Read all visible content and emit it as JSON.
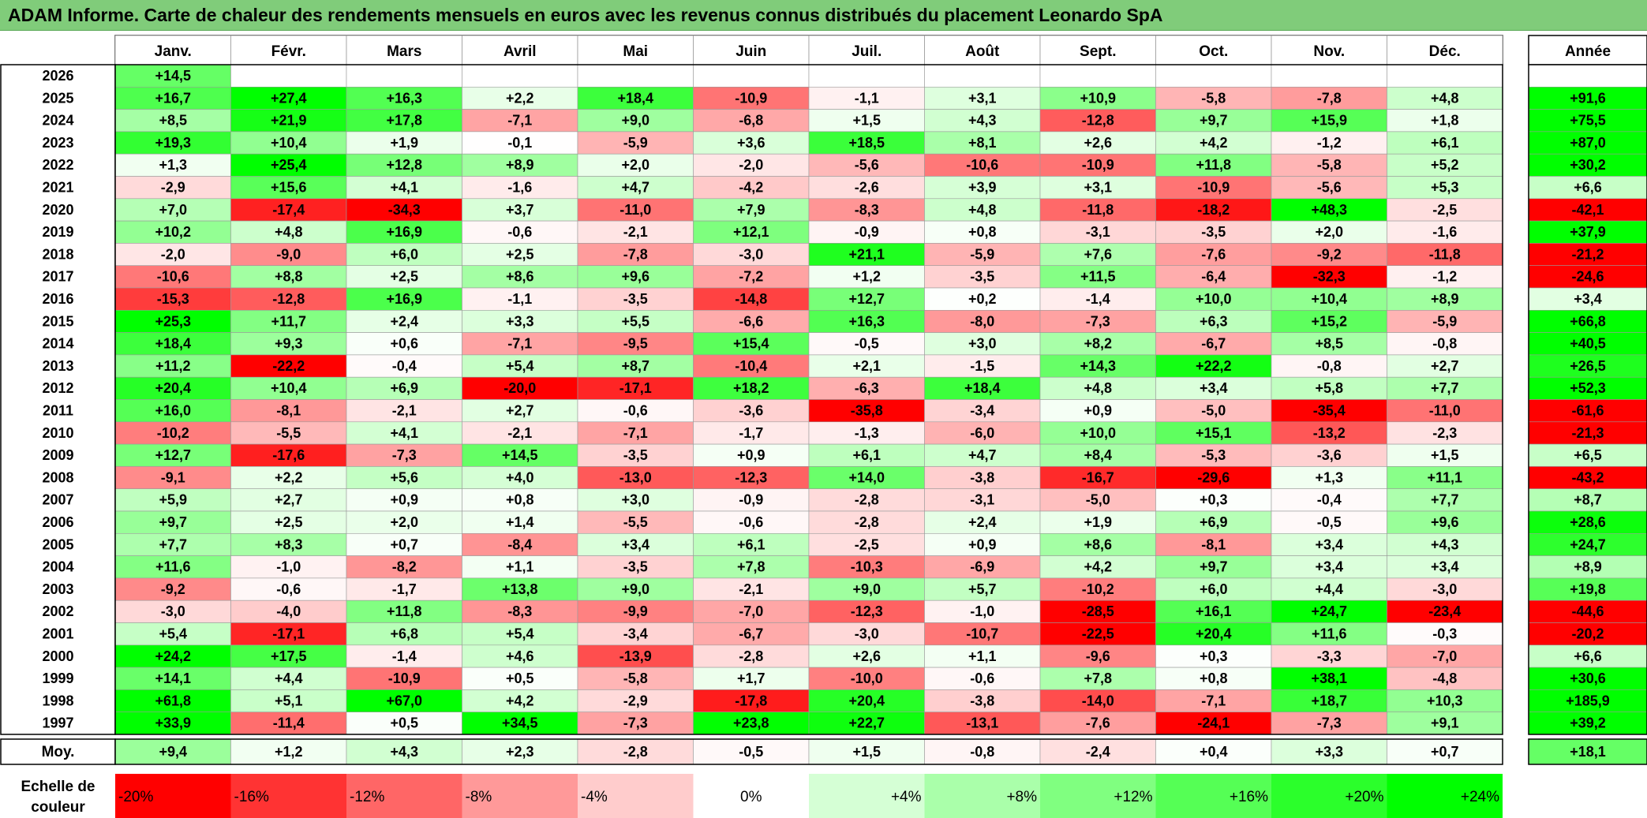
{
  "title": "ADAM Informe. Carte de chaleur des rendements mensuels en euros avec les revenus connus distribués du placement Leonardo SpA",
  "chart_data": {
    "type": "heatmap",
    "columns": [
      "Janv.",
      "Févr.",
      "Mars",
      "Avril",
      "Mai",
      "Juin",
      "Juil.",
      "Août",
      "Sept.",
      "Oct.",
      "Nov.",
      "Déc."
    ],
    "year_column_label": "Année",
    "rows": [
      {
        "year": "2026",
        "values": [
          "+14,5",
          "",
          "",
          "",
          "",
          "",
          "",
          "",
          "",
          "",
          "",
          ""
        ],
        "annual": ""
      },
      {
        "year": "2025",
        "values": [
          "+16,7",
          "+27,4",
          "+16,3",
          "+2,2",
          "+18,4",
          "-10,9",
          "-1,1",
          "+3,1",
          "+10,9",
          "-5,8",
          "-7,8",
          "+4,8"
        ],
        "annual": "+91,6"
      },
      {
        "year": "2024",
        "values": [
          "+8,5",
          "+21,9",
          "+17,8",
          "-7,1",
          "+9,0",
          "-6,8",
          "+1,5",
          "+4,3",
          "-12,8",
          "+9,7",
          "+15,9",
          "+1,8"
        ],
        "annual": "+75,5"
      },
      {
        "year": "2023",
        "values": [
          "+19,3",
          "+10,4",
          "+1,9",
          "-0,1",
          "-5,9",
          "+3,6",
          "+18,5",
          "+8,1",
          "+2,6",
          "+4,2",
          "-1,2",
          "+6,1"
        ],
        "annual": "+87,0"
      },
      {
        "year": "2022",
        "values": [
          "+1,3",
          "+25,4",
          "+12,8",
          "+8,9",
          "+2,0",
          "-2,0",
          "-5,6",
          "-10,6",
          "-10,9",
          "+11,8",
          "-5,8",
          "+5,2"
        ],
        "annual": "+30,2"
      },
      {
        "year": "2021",
        "values": [
          "-2,9",
          "+15,6",
          "+4,1",
          "-1,6",
          "+4,7",
          "-4,2",
          "-2,6",
          "+3,9",
          "+3,1",
          "-10,9",
          "-5,6",
          "+5,3"
        ],
        "annual": "+6,6"
      },
      {
        "year": "2020",
        "values": [
          "+7,0",
          "-17,4",
          "-34,3",
          "+3,7",
          "-11,0",
          "+7,9",
          "-8,3",
          "+4,8",
          "-11,8",
          "-18,2",
          "+48,3",
          "-2,5"
        ],
        "annual": "-42,1"
      },
      {
        "year": "2019",
        "values": [
          "+10,2",
          "+4,8",
          "+16,9",
          "-0,6",
          "-2,1",
          "+12,1",
          "-0,9",
          "+0,8",
          "-3,1",
          "-3,5",
          "+2,0",
          "-1,6"
        ],
        "annual": "+37,9"
      },
      {
        "year": "2018",
        "values": [
          "-2,0",
          "-9,0",
          "+6,0",
          "+2,5",
          "-7,8",
          "-3,0",
          "+21,1",
          "-5,9",
          "+7,6",
          "-7,6",
          "-9,2",
          "-11,8"
        ],
        "annual": "-21,2"
      },
      {
        "year": "2017",
        "values": [
          "-10,6",
          "+8,8",
          "+2,5",
          "+8,6",
          "+9,6",
          "-7,2",
          "+1,2",
          "-3,5",
          "+11,5",
          "-6,4",
          "-32,3",
          "-1,2"
        ],
        "annual": "-24,6"
      },
      {
        "year": "2016",
        "values": [
          "-15,3",
          "-12,8",
          "+16,9",
          "-1,1",
          "-3,5",
          "-14,8",
          "+12,7",
          "+0,2",
          "-1,4",
          "+10,0",
          "+10,4",
          "+8,9"
        ],
        "annual": "+3,4"
      },
      {
        "year": "2015",
        "values": [
          "+25,3",
          "+11,7",
          "+2,4",
          "+3,3",
          "+5,5",
          "-6,6",
          "+16,3",
          "-8,0",
          "-7,3",
          "+6,3",
          "+15,2",
          "-5,9"
        ],
        "annual": "+66,8"
      },
      {
        "year": "2014",
        "values": [
          "+18,4",
          "+9,3",
          "+0,6",
          "-7,1",
          "-9,5",
          "+15,4",
          "-0,5",
          "+3,0",
          "+8,2",
          "-6,7",
          "+8,5",
          "-0,8"
        ],
        "annual": "+40,5"
      },
      {
        "year": "2013",
        "values": [
          "+11,2",
          "-22,2",
          "-0,4",
          "+5,4",
          "+8,7",
          "-10,4",
          "+2,1",
          "-1,5",
          "+14,3",
          "+22,2",
          "-0,8",
          "+2,7"
        ],
        "annual": "+26,5"
      },
      {
        "year": "2012",
        "values": [
          "+20,4",
          "+10,4",
          "+6,9",
          "-20,0",
          "-17,1",
          "+18,2",
          "-6,3",
          "+18,4",
          "+4,8",
          "+3,4",
          "+5,8",
          "+7,7"
        ],
        "annual": "+52,3"
      },
      {
        "year": "2011",
        "values": [
          "+16,0",
          "-8,1",
          "-2,1",
          "+2,7",
          "-0,6",
          "-3,6",
          "-35,8",
          "-3,4",
          "+0,9",
          "-5,0",
          "-35,4",
          "-11,0"
        ],
        "annual": "-61,6"
      },
      {
        "year": "2010",
        "values": [
          "-10,2",
          "-5,5",
          "+4,1",
          "-2,1",
          "-7,1",
          "-1,7",
          "-1,3",
          "-6,0",
          "+10,0",
          "+15,1",
          "-13,2",
          "-2,3"
        ],
        "annual": "-21,3"
      },
      {
        "year": "2009",
        "values": [
          "+12,7",
          "-17,6",
          "-7,3",
          "+14,5",
          "-3,5",
          "+0,9",
          "+6,1",
          "+4,7",
          "+8,4",
          "-5,3",
          "-3,6",
          "+1,5"
        ],
        "annual": "+6,5"
      },
      {
        "year": "2008",
        "values": [
          "-9,1",
          "+2,2",
          "+5,6",
          "+4,0",
          "-13,0",
          "-12,3",
          "+14,0",
          "-3,8",
          "-16,7",
          "-29,6",
          "+1,3",
          "+11,1"
        ],
        "annual": "-43,2"
      },
      {
        "year": "2007",
        "values": [
          "+5,9",
          "+2,7",
          "+0,9",
          "+0,8",
          "+3,0",
          "-0,9",
          "-2,8",
          "-3,1",
          "-5,0",
          "+0,3",
          "-0,4",
          "+7,7"
        ],
        "annual": "+8,7"
      },
      {
        "year": "2006",
        "values": [
          "+9,7",
          "+2,5",
          "+2,0",
          "+1,4",
          "-5,5",
          "-0,6",
          "-2,8",
          "+2,4",
          "+1,9",
          "+6,9",
          "-0,5",
          "+9,6"
        ],
        "annual": "+28,6"
      },
      {
        "year": "2005",
        "values": [
          "+7,7",
          "+8,3",
          "+0,7",
          "-8,4",
          "+3,4",
          "+6,1",
          "-2,5",
          "+0,9",
          "+8,6",
          "-8,1",
          "+3,4",
          "+4,3"
        ],
        "annual": "+24,7"
      },
      {
        "year": "2004",
        "values": [
          "+11,6",
          "-1,0",
          "-8,2",
          "+1,1",
          "-3,5",
          "+7,8",
          "-10,3",
          "-6,9",
          "+4,2",
          "+9,7",
          "+3,4",
          "+3,4"
        ],
        "annual": "+8,9"
      },
      {
        "year": "2003",
        "values": [
          "-9,2",
          "-0,6",
          "-1,7",
          "+13,8",
          "+9,0",
          "-2,1",
          "+9,0",
          "+5,7",
          "-10,2",
          "+6,0",
          "+4,4",
          "-3,0"
        ],
        "annual": "+19,8"
      },
      {
        "year": "2002",
        "values": [
          "-3,0",
          "-4,0",
          "+11,8",
          "-8,3",
          "-9,9",
          "-7,0",
          "-12,3",
          "-1,0",
          "-28,5",
          "+16,1",
          "+24,7",
          "-23,4"
        ],
        "annual": "-44,6"
      },
      {
        "year": "2001",
        "values": [
          "+5,4",
          "-17,1",
          "+6,8",
          "+5,4",
          "-3,4",
          "-6,7",
          "-3,0",
          "-10,7",
          "-22,5",
          "+20,4",
          "+11,6",
          "-0,3"
        ],
        "annual": "-20,2"
      },
      {
        "year": "2000",
        "values": [
          "+24,2",
          "+17,5",
          "-1,4",
          "+4,6",
          "-13,9",
          "-2,8",
          "+2,6",
          "+1,1",
          "-9,6",
          "+0,3",
          "-3,3",
          "-7,0"
        ],
        "annual": "+6,6"
      },
      {
        "year": "1999",
        "values": [
          "+14,1",
          "+4,4",
          "-10,9",
          "+0,5",
          "-5,8",
          "+1,7",
          "-10,0",
          "-0,6",
          "+7,8",
          "+0,8",
          "+38,1",
          "-4,8"
        ],
        "annual": "+30,6"
      },
      {
        "year": "1998",
        "values": [
          "+61,8",
          "+5,1",
          "+67,0",
          "+4,2",
          "-2,9",
          "-17,8",
          "+20,4",
          "-3,8",
          "-14,0",
          "-7,1",
          "+18,7",
          "+10,3"
        ],
        "annual": "+185,9"
      },
      {
        "year": "1997",
        "values": [
          "+33,9",
          "-11,4",
          "+0,5",
          "+34,5",
          "-7,3",
          "+23,8",
          "+22,7",
          "-13,1",
          "-7,6",
          "-24,1",
          "-7,3",
          "+9,1"
        ],
        "annual": "+39,2"
      }
    ],
    "average_row": {
      "label": "Moy.",
      "values": [
        "+9,4",
        "+1,2",
        "+4,3",
        "+2,3",
        "-2,8",
        "-0,5",
        "+1,5",
        "-0,8",
        "-2,4",
        "+0,4",
        "+3,3",
        "+0,7"
      ],
      "annual": "+18,1"
    },
    "scale": {
      "label_line1": "Echelle de",
      "label_line2": "couleur",
      "steps": [
        "-20%",
        "-16%",
        "-12%",
        "-8%",
        "-4%",
        "0%",
        "+4%",
        "+8%",
        "+12%",
        "+16%",
        "+20%",
        "+24%"
      ],
      "step_values": [
        -20,
        -16,
        -12,
        -8,
        -4,
        0,
        4,
        8,
        12,
        16,
        20,
        24
      ]
    },
    "colors": {
      "title_bg": "#80cc7a",
      "negative_max": "#ff0000",
      "positive_max": "#00ff00",
      "neutral": "#ffffff"
    }
  }
}
